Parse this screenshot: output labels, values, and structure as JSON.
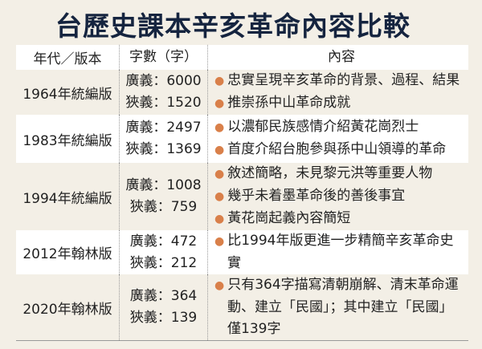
{
  "title": "台歷史課本辛亥革命內容比較",
  "headers": [
    "年代／版本",
    "字數（字）",
    "內容"
  ],
  "colors": {
    "title": "#15243f",
    "bullet": "#d9804a",
    "background": "#f3efe6"
  },
  "rows": [
    {
      "edition": "1964年統編版",
      "broad": "廣義：6000",
      "narrow": "狹義：1520",
      "content": [
        "忠實呈現辛亥革命的背景、過程、結果",
        "推崇孫中山革命成就"
      ]
    },
    {
      "edition": "1983年統編版",
      "broad": "廣義：2497",
      "narrow": "狹義：1369",
      "content": [
        "以濃郁民族感情介紹黃花崗烈士",
        "首度介紹台胞參與孫中山領導的革命"
      ]
    },
    {
      "edition": "1994年統編版",
      "broad": "廣義：1008",
      "narrow": "狹義：759",
      "content": [
        "敘述簡略，未見黎元洪等重要人物",
        "幾乎未着墨革命後的善後事宜",
        "黃花崗起義內容簡短"
      ]
    },
    {
      "edition": "2012年翰林版",
      "broad": "廣義：472",
      "narrow": "狹義：212",
      "content": [
        "比1994年版更進一步精簡辛亥革命史實"
      ]
    },
    {
      "edition": "2020年翰林版",
      "broad": "廣義：364",
      "narrow": "狹義：139",
      "content": [
        "只有364字描寫清朝崩解、清末革命運動、建立「民國」；其中建立「民國」僅139字"
      ]
    }
  ]
}
